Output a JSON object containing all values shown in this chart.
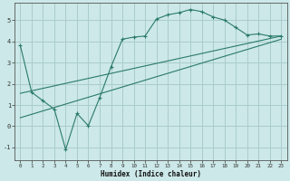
{
  "xlabel": "Humidex (Indice chaleur)",
  "ylabel": "",
  "bg_color": "#cce8e8",
  "grid_color": "#aacccc",
  "line_color": "#2a7a6a",
  "xlim": [
    -0.5,
    23.5
  ],
  "ylim": [
    -1.6,
    5.8
  ],
  "xticks": [
    0,
    1,
    2,
    3,
    4,
    5,
    6,
    7,
    8,
    9,
    10,
    11,
    12,
    13,
    14,
    15,
    16,
    17,
    18,
    19,
    20,
    21,
    22,
    23
  ],
  "yticks": [
    -1,
    0,
    1,
    2,
    3,
    4,
    5
  ],
  "series1_x": [
    0,
    1,
    2,
    3,
    4,
    5,
    6,
    7,
    8,
    9,
    10,
    11,
    12,
    13,
    14,
    15,
    16,
    17,
    18,
    19,
    20,
    21,
    22,
    23
  ],
  "series1_y": [
    3.8,
    1.6,
    1.2,
    0.8,
    -1.1,
    0.6,
    0.02,
    1.35,
    2.8,
    4.1,
    4.2,
    4.25,
    5.05,
    5.25,
    5.35,
    5.5,
    5.4,
    5.15,
    5.0,
    4.65,
    4.3,
    4.35,
    4.25,
    4.25
  ],
  "series2_x": [
    0,
    23
  ],
  "series2_y": [
    1.55,
    4.25
  ],
  "series3_x": [
    0,
    23
  ],
  "series3_y": [
    0.4,
    4.1
  ]
}
